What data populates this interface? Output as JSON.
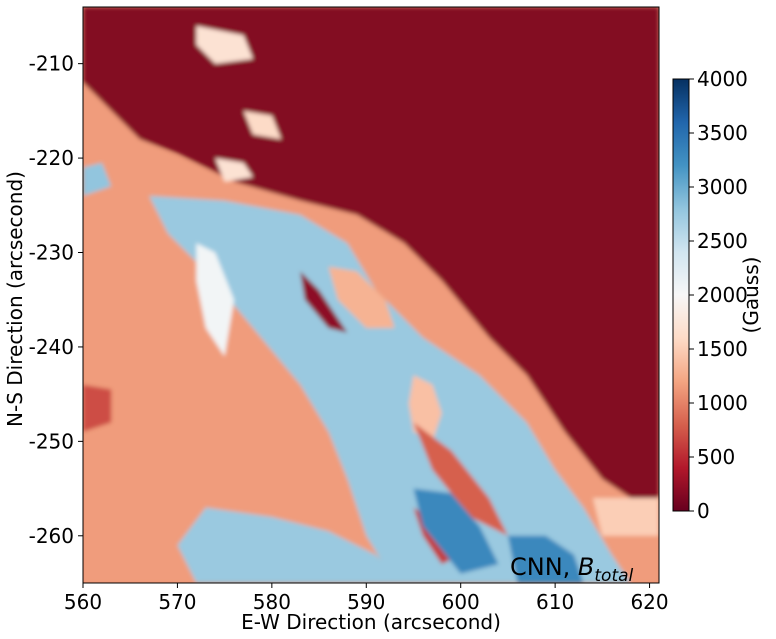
{
  "chart_data": {
    "type": "heatmap",
    "title": "",
    "xlabel": "E-W Direction (arcsecond)",
    "ylabel": "N-S Direction (arcsecond)",
    "xlim": [
      560,
      621
    ],
    "ylim": [
      -265,
      -204
    ],
    "xticks": [
      560,
      570,
      580,
      590,
      600,
      610,
      620
    ],
    "xtick_labels": [
      "560",
      "570",
      "580",
      "590",
      "600",
      "610",
      "620"
    ],
    "yticks": [
      -210,
      -220,
      -230,
      -240,
      -250,
      -260
    ],
    "ytick_labels": [
      "-210",
      "-220",
      "-230",
      "-240",
      "-250",
      "-260"
    ],
    "colormap": "RdBu",
    "colorbar": {
      "label": "(Gauss)",
      "range": [
        0,
        4000
      ],
      "ticks": [
        0,
        500,
        1000,
        1500,
        2000,
        2500,
        3000,
        3500,
        4000
      ],
      "tick_labels": [
        "0",
        "500",
        "1000",
        "1500",
        "2000",
        "2500",
        "3000",
        "3500",
        "4000"
      ]
    },
    "annotation": {
      "prefix": "CNN, ",
      "symbol": "B",
      "subscript": "total"
    },
    "regions": [
      {
        "polygon": [
          [
            560,
            -204
          ],
          [
            621,
            -204
          ],
          [
            621,
            -258
          ],
          [
            615,
            -254
          ],
          [
            611,
            -249
          ],
          [
            607,
            -243
          ],
          [
            603,
            -239
          ],
          [
            598,
            -233
          ],
          [
            594,
            -229
          ],
          [
            589,
            -226
          ],
          [
            583,
            -224.5
          ],
          [
            576,
            -222.5
          ],
          [
            570,
            -219.5
          ],
          [
            566,
            -218
          ],
          [
            562,
            -214
          ],
          [
            560,
            -212
          ]
        ],
        "value": 150
      },
      {
        "polygon": [
          [
            560,
            -212
          ],
          [
            566,
            -218
          ],
          [
            576,
            -222.5
          ],
          [
            583,
            -224.5
          ],
          [
            589,
            -226
          ],
          [
            594,
            -229
          ],
          [
            598,
            -233
          ],
          [
            603,
            -239
          ],
          [
            607,
            -243
          ],
          [
            611,
            -249
          ],
          [
            615,
            -254
          ],
          [
            621,
            -258
          ],
          [
            621,
            -265
          ],
          [
            560,
            -265
          ]
        ],
        "value": 1150
      },
      {
        "polygon": [
          [
            567,
            -224
          ],
          [
            575,
            -224.5
          ],
          [
            583,
            -226
          ],
          [
            588,
            -229
          ],
          [
            591,
            -234
          ],
          [
            596,
            -239
          ],
          [
            602,
            -243
          ],
          [
            607,
            -248
          ],
          [
            610,
            -253
          ],
          [
            613,
            -257
          ],
          [
            616,
            -262
          ],
          [
            618,
            -265
          ],
          [
            593,
            -265
          ],
          [
            590,
            -260
          ],
          [
            588,
            -254
          ],
          [
            586,
            -249
          ],
          [
            583,
            -244
          ],
          [
            578,
            -238
          ],
          [
            573,
            -232
          ],
          [
            569,
            -228
          ]
        ],
        "value": 2750
      },
      {
        "polygon": [
          [
            573,
            -257
          ],
          [
            580,
            -258
          ],
          [
            586,
            -259.5
          ],
          [
            591,
            -262
          ],
          [
            594,
            -265
          ],
          [
            572,
            -265
          ],
          [
            570,
            -261
          ]
        ],
        "value": 2750
      },
      {
        "polygon": [
          [
            560,
            -221
          ],
          [
            562,
            -220.5
          ],
          [
            563,
            -223
          ],
          [
            560,
            -224
          ]
        ],
        "value": 2800
      },
      {
        "polygon": [
          [
            586,
            -231.5
          ],
          [
            589,
            -232
          ],
          [
            592,
            -235
          ],
          [
            593,
            -238
          ],
          [
            590,
            -238
          ],
          [
            587,
            -235
          ]
        ],
        "value": 1300
      },
      {
        "polygon": [
          [
            583,
            -232
          ],
          [
            585,
            -234
          ],
          [
            587,
            -237
          ],
          [
            588,
            -238.5
          ],
          [
            586,
            -238
          ],
          [
            583.5,
            -235
          ]
        ],
        "value": 200
      },
      {
        "polygon": [
          [
            595,
            -243
          ],
          [
            597,
            -244
          ],
          [
            598,
            -247
          ],
          [
            597,
            -250
          ],
          [
            595,
            -249
          ],
          [
            594.5,
            -246
          ]
        ],
        "value": 1400
      },
      {
        "polygon": [
          [
            595,
            -248
          ],
          [
            599,
            -251
          ],
          [
            603,
            -256
          ],
          [
            605,
            -260
          ],
          [
            601,
            -258
          ],
          [
            597,
            -253
          ]
        ],
        "value": 800
      },
      {
        "polygon": [
          [
            595,
            -257
          ],
          [
            598,
            -259
          ],
          [
            600,
            -262
          ],
          [
            598,
            -263
          ],
          [
            596,
            -260
          ]
        ],
        "value": 600
      },
      {
        "polygon": [
          [
            560,
            -244
          ],
          [
            563,
            -244.5
          ],
          [
            563,
            -248
          ],
          [
            560,
            -249
          ]
        ],
        "value": 700
      },
      {
        "polygon": [
          [
            572,
            -229
          ],
          [
            574,
            -230
          ],
          [
            576,
            -235
          ],
          [
            575,
            -241
          ],
          [
            573,
            -238
          ],
          [
            572,
            -233
          ]
        ],
        "value": 2050
      },
      {
        "polygon": [
          [
            595,
            -255
          ],
          [
            599,
            -255.5
          ],
          [
            602,
            -259
          ],
          [
            604,
            -263
          ],
          [
            600,
            -264
          ],
          [
            596,
            -259
          ]
        ],
        "value": 3300
      },
      {
        "polygon": [
          [
            605,
            -260
          ],
          [
            609,
            -260
          ],
          [
            612,
            -262
          ],
          [
            613,
            -265
          ],
          [
            606,
            -265
          ]
        ],
        "value": 3300
      },
      {
        "polygon": [
          [
            577,
            -215
          ],
          [
            580,
            -215.5
          ],
          [
            581,
            -218
          ],
          [
            578,
            -217.5
          ]
        ],
        "value": 1600
      },
      {
        "polygon": [
          [
            572,
            -206
          ],
          [
            577,
            -207
          ],
          [
            578,
            -209.5
          ],
          [
            574,
            -210
          ],
          [
            572,
            -208
          ]
        ],
        "value": 1700
      },
      {
        "polygon": [
          [
            574,
            -220
          ],
          [
            577,
            -220.5
          ],
          [
            578,
            -222
          ],
          [
            575,
            -222.5
          ]
        ],
        "value": 1700
      },
      {
        "polygon": [
          [
            614,
            -256
          ],
          [
            621,
            -256
          ],
          [
            621,
            -260
          ],
          [
            615,
            -260
          ]
        ],
        "value": 1500
      }
    ]
  }
}
